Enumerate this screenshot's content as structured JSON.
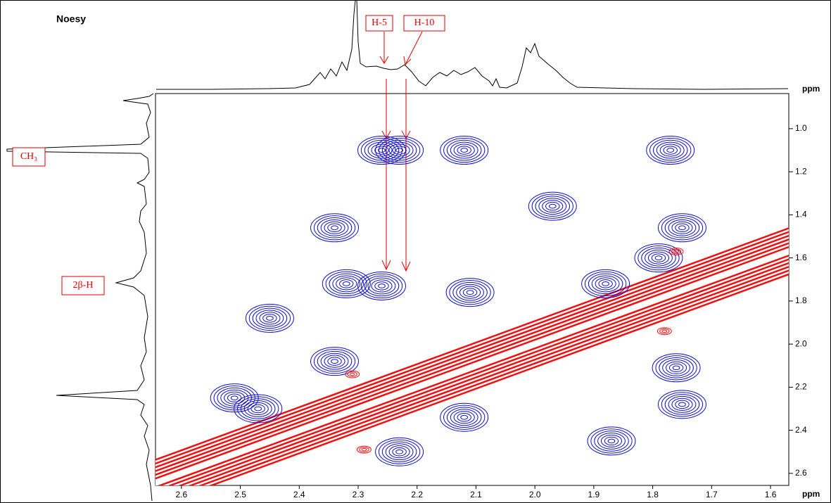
{
  "chart_data": {
    "type": "contour",
    "title": "Noesy",
    "x_label": "ppm",
    "y_label": "ppm",
    "xlim": [
      2.644,
      1.569
    ],
    "ylim": [
      0.837,
      2.656
    ],
    "xticks": [
      2.6,
      2.5,
      2.4,
      2.3,
      2.2,
      2.1,
      {
        "value": 2,
        "label": "2.0"
      },
      1.9,
      1.8,
      1.7,
      1.6
    ],
    "yticks": [
      {
        "value": 1,
        "label": "1.0"
      },
      1.2,
      1.4,
      1.6,
      1.8,
      {
        "value": 2,
        "label": "2.0"
      },
      2.2,
      2.4,
      2.6
    ],
    "annotations": [
      "H-5",
      "H-10",
      "CH₃",
      "2β-H"
    ],
    "positive": {
      "color": "#1010d0",
      "x": [
        2.26,
        2.23,
        2.12,
        1.77,
        1.97,
        2.34,
        1.75,
        2.32,
        2.26,
        2.11,
        1.88,
        2.45,
        2.34,
        2.51,
        2.47,
        2.12,
        1.87,
        2.23,
        1.76,
        1.75,
        1.79
      ],
      "y": [
        1.1,
        1.1,
        1.1,
        1.1,
        1.36,
        1.46,
        1.46,
        1.72,
        1.73,
        1.76,
        1.72,
        1.88,
        2.08,
        2.25,
        2.3,
        2.34,
        2.45,
        2.5,
        2.11,
        2.28,
        1.6
      ]
    },
    "negative": {
      "color": "#ee1010",
      "x": [
        2.31,
        2.29,
        1.78,
        1.76
      ],
      "y": [
        2.14,
        2.49,
        1.94,
        1.57
      ]
    }
  }
}
